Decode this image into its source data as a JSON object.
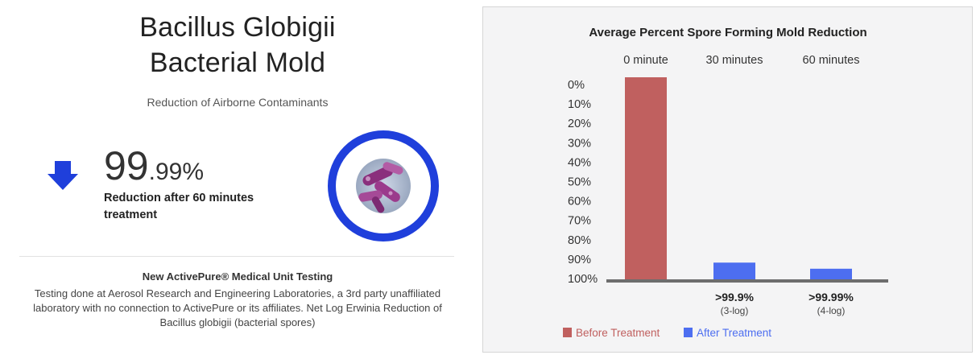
{
  "header": {
    "title_line1": "Bacillus Globigii",
    "title_line2": "Bacterial Mold",
    "subtitle": "Reduction of Airborne Contaminants"
  },
  "stat": {
    "value_int": "99",
    "value_dec": ".99%",
    "caption": "Reduction after 60 minutes treatment",
    "arrow_icon": "arrow-down-icon",
    "ring_icon": "bacteria-image-icon",
    "ring_color": "#1f3fdb"
  },
  "note": {
    "title": "New ActivePure® Medical Unit Testing",
    "body": "Testing done at Aerosol Research and Engineering Laboratories, a 3rd party unaffiliated laboratory with no connection to ActivePure or its affiliates. Net Log Erwinia Reduction of Bacillus globigii (bacterial spores)"
  },
  "chart_data": {
    "type": "bar",
    "title": "Average Percent Spore Forming Mold Reduction",
    "categories": [
      "0 minute",
      "30 minutes",
      "60 minutes"
    ],
    "y_ticks": [
      "0%",
      "10%",
      "20%",
      "30%",
      "40%",
      "50%",
      "60%",
      "70%",
      "80%",
      "90%",
      "100%"
    ],
    "ylim": [
      0,
      100
    ],
    "y_inverted": true,
    "series": [
      {
        "name": "Before Treatment",
        "color": "#c0605f",
        "values": [
          100,
          null,
          null
        ]
      },
      {
        "name": "After Treatment",
        "color": "#4d6ef0",
        "values": [
          null,
          9,
          6
        ]
      }
    ],
    "value_labels": [
      {
        "category": "30 minutes",
        "value": ">99.9%",
        "sub": "(3-log)"
      },
      {
        "category": "60 minutes",
        "value": ">99.99%",
        "sub": "(4-log)"
      }
    ],
    "legend_position": "bottom",
    "grid": false
  }
}
